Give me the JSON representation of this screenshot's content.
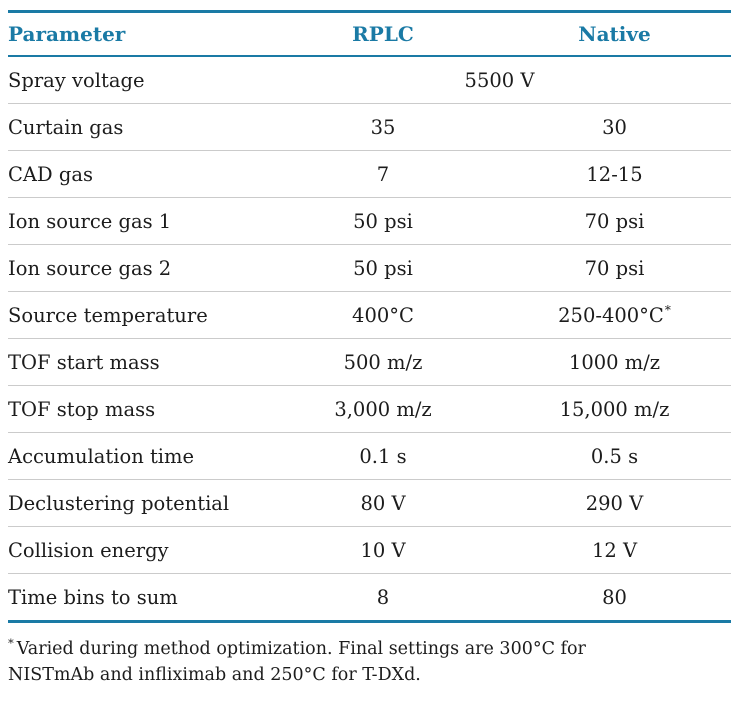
{
  "colors": {
    "accent_teal": "#1a7aa5",
    "row_divider_gray": "#cbcbcb",
    "body_text": "#1c1c1c",
    "background": "#ffffff"
  },
  "table": {
    "columns": [
      "Parameter",
      "RPLC",
      "Native"
    ],
    "rows": [
      {
        "param": "Spray voltage",
        "merged": "5500 V"
      },
      {
        "param": "Curtain gas",
        "rplc": "35",
        "native": "30"
      },
      {
        "param": "CAD gas",
        "rplc": "7",
        "native": "12-15"
      },
      {
        "param": "Ion source gas 1",
        "rplc": "50 psi",
        "native": "70 psi"
      },
      {
        "param": "Ion source gas 2",
        "rplc": "50 psi",
        "native": "70 psi"
      },
      {
        "param": "Source temperature",
        "rplc": "400°C",
        "native": "250-400°C",
        "native_note": "*"
      },
      {
        "param": "TOF start mass",
        "rplc": "500 m/z",
        "native": "1000 m/z"
      },
      {
        "param": "TOF stop mass",
        "rplc": "3,000 m/z",
        "native": "15,000 m/z"
      },
      {
        "param": "Accumulation time",
        "rplc": "0.1 s",
        "native": "0.5 s"
      },
      {
        "param": "Declustering potential",
        "rplc": "80 V",
        "native": "290 V"
      },
      {
        "param": "Collision energy",
        "rplc": "10 V",
        "native": "12 V"
      },
      {
        "param": "Time bins to sum",
        "rplc": "8",
        "native": "80"
      }
    ]
  },
  "footnote": {
    "marker": "*",
    "text": "Varied during method optimization. Final settings are 300°C for NISTmAb and infliximab and 250°C for T-DXd."
  }
}
